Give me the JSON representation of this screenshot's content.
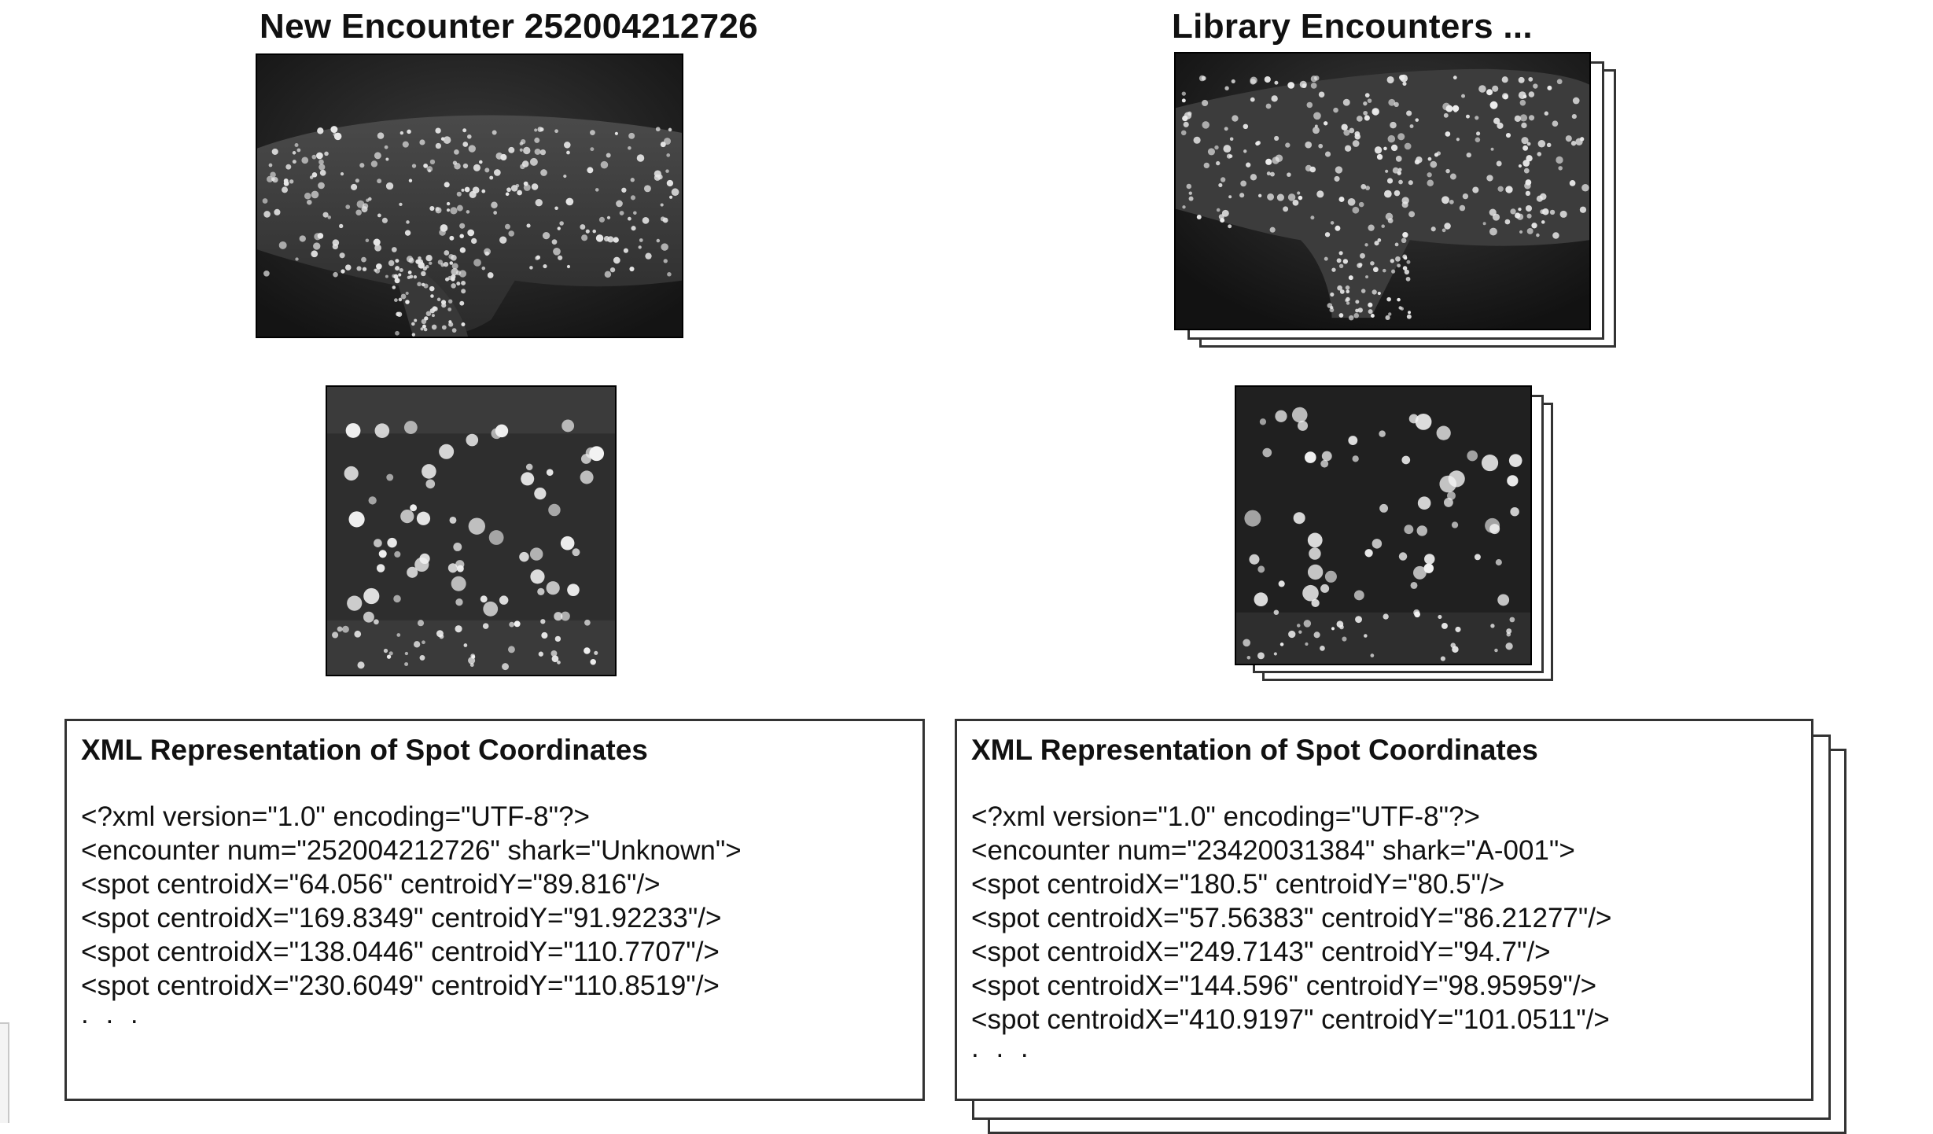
{
  "left": {
    "title": "New Encounter 252004212726",
    "xml": {
      "heading": "XML Representation of Spot Coordinates",
      "lines": [
        "<?xml version=\"1.0\" encoding=\"UTF-8\"?>",
        "<encounter num=\"252004212726\" shark=\"Unknown\">",
        "<spot centroidX=\"64.056\" centroidY=\"89.816\"/>",
        "<spot centroidX=\"169.8349\" centroidY=\"91.92233\"/>",
        "<spot centroidX=\"138.0446\" centroidY=\"110.7707\"/>",
        "<spot centroidX=\"230.6049\" centroidY=\"110.8519\"/>"
      ],
      "ellipsis": ". . ."
    }
  },
  "right": {
    "title": "Library Encounters ...",
    "xml": {
      "heading": "XML Representation of Spot Coordinates",
      "lines": [
        "<?xml version=\"1.0\" encoding=\"UTF-8\"?>",
        "<encounter num=\"23420031384\" shark=\"A-001\">",
        "<spot centroidX=\"180.5\" centroidY=\"80.5\"/>",
        "<spot centroidX=\"57.56383\" centroidY=\"86.21277\"/>",
        "<spot centroidX=\"249.7143\" centroidY=\"94.7\"/>",
        "<spot centroidX=\"144.596\" centroidY=\"98.95959\"/>",
        "<spot centroidX=\"410.9197\" centroidY=\"101.0511\"/>"
      ],
      "ellipsis": ". . ."
    }
  },
  "images": {
    "left_photo": "whale-shark-full-body-photo",
    "left_crop": "whale-shark-spot-region-crop",
    "right_photo": "whale-shark-full-body-photo",
    "right_crop": "whale-shark-spot-region-crop"
  }
}
